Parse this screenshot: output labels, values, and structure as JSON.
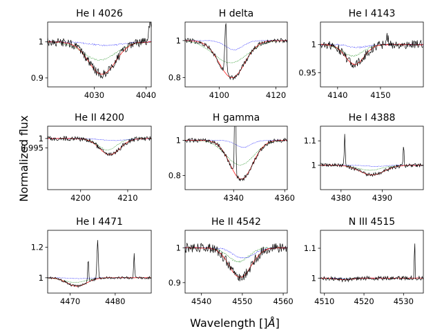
{
  "figure": {
    "xlabel": "Wavelength [$\\AA$]",
    "ylabel": "Normalized flux",
    "colors": {
      "observed": "#000000",
      "model": "#ff0000",
      "comp_green": "#008000",
      "comp_blue": "#0000ff"
    }
  },
  "chart_data": [
    {
      "type": "line",
      "title": "He I 4026",
      "xlim": [
        4021,
        4041
      ],
      "ylim": [
        0.875,
        1.055
      ],
      "xticks": [
        4030,
        4040
      ],
      "yticks": [
        0.9,
        1.0
      ],
      "center": 4031.5,
      "depth": 0.09,
      "width": 2.6,
      "green_depth": 0.05,
      "green_width": 3.2,
      "blue_depth": 0.01,
      "blue_width": 3,
      "emission": [
        [
          4040.8,
          0.06,
          0.25
        ]
      ],
      "noise": 0.012
    },
    {
      "type": "line",
      "title": "H delta",
      "xlim": [
        4088,
        4124
      ],
      "ylim": [
        0.75,
        1.1
      ],
      "xticks": [
        4100,
        4120
      ],
      "yticks": [
        0.8,
        1.0
      ],
      "center": 4104.5,
      "depth": 0.2,
      "width": 4.5,
      "green_depth": 0.12,
      "green_width": 6,
      "blue_depth": 0.05,
      "blue_width": 3,
      "emission": [
        [
          4102.3,
          0.28,
          0.3
        ]
      ],
      "noise": 0.012
    },
    {
      "type": "line",
      "title": "He I 4143",
      "xlim": [
        4136,
        4160
      ],
      "ylim": [
        0.925,
        1.04
      ],
      "xticks": [
        4140,
        4150
      ],
      "yticks": [
        0.95,
        1.0
      ],
      "center": 4144,
      "depth": 0.035,
      "width": 2.2,
      "green_depth": 0.02,
      "green_width": 2.5,
      "blue_depth": 0.005,
      "blue_width": 2,
      "emission": [
        [
          4151.5,
          0.015,
          0.3
        ]
      ],
      "noise": 0.008
    },
    {
      "type": "line",
      "title": "He II 4200",
      "xlim": [
        4193,
        4215
      ],
      "ylim": [
        0.973,
        1.0065
      ],
      "xticks": [
        4200,
        4210
      ],
      "yticks": [
        0.995,
        1.0
      ],
      "center": 4206.2,
      "depth": 0.0085,
      "width": 2.2,
      "green_depth": 0.006,
      "green_width": 2,
      "blue_depth": 0.001,
      "blue_width": 3,
      "emission": [],
      "noise": 0.0012
    },
    {
      "type": "line",
      "title": "H gamma",
      "xlim": [
        4321,
        4361
      ],
      "ylim": [
        0.72,
        1.08
      ],
      "xticks": [
        4340,
        4360
      ],
      "yticks": [
        0.8,
        1.0
      ],
      "center": 4343,
      "depth": 0.22,
      "width": 4.5,
      "green_depth": 0.14,
      "green_width": 5.5,
      "blue_depth": 0.04,
      "blue_width": 3,
      "emission": [
        [
          4340.6,
          0.9,
          0.2
        ]
      ],
      "noise": 0.012
    },
    {
      "type": "line",
      "title": "He I 4388",
      "xlim": [
        4375,
        4400
      ],
      "ylim": [
        0.9,
        1.16
      ],
      "xticks": [
        4380,
        4390
      ],
      "yticks": [
        1.0,
        1.1
      ],
      "center": 4387.5,
      "depth": 0.04,
      "width": 3,
      "green_depth": 0.02,
      "green_width": 3,
      "blue_depth": 0.005,
      "blue_width": 2,
      "emission": [
        [
          4380.9,
          0.13,
          0.12
        ],
        [
          4395.2,
          0.08,
          0.12
        ]
      ],
      "noise": 0.008
    },
    {
      "type": "line",
      "title": "He I 4471",
      "xlim": [
        4465,
        4488
      ],
      "ylim": [
        0.9,
        1.31
      ],
      "xticks": [
        4470,
        4480
      ],
      "yticks": [
        1.0,
        1.2
      ],
      "center": 4471.5,
      "depth": 0.055,
      "width": 2.2,
      "green_depth": 0.03,
      "green_width": 2.5,
      "blue_depth": 0.005,
      "blue_width": 2,
      "emission": [
        [
          4474.0,
          0.15,
          0.12
        ],
        [
          4476.1,
          0.26,
          0.15
        ],
        [
          4484.2,
          0.16,
          0.1
        ]
      ],
      "noise": 0.008
    },
    {
      "type": "line",
      "title": "He II 4542",
      "xlim": [
        4536,
        4561
      ],
      "ylim": [
        0.87,
        1.05
      ],
      "xticks": [
        4540,
        4550,
        4560
      ],
      "yticks": [
        0.9,
        1.0
      ],
      "center": 4549.5,
      "depth": 0.085,
      "width": 2.7,
      "green_depth": 0.04,
      "green_width": 2.5,
      "blue_depth": 0.03,
      "blue_width": 2.5,
      "emission": [],
      "noise": 0.014
    },
    {
      "type": "line",
      "title": "N III 4515",
      "xlim": [
        4509,
        4535
      ],
      "ylim": [
        0.95,
        1.16
      ],
      "xticks": [
        4510,
        4520,
        4530
      ],
      "yticks": [
        1.0,
        1.1
      ],
      "center": 4515,
      "depth": 0.005,
      "width": 2,
      "green_depth": 0.002,
      "green_width": 2,
      "blue_depth": 0.002,
      "blue_width": 2,
      "emission": [
        [
          4532.8,
          0.15,
          0.08
        ]
      ],
      "noise": 0.007
    }
  ]
}
